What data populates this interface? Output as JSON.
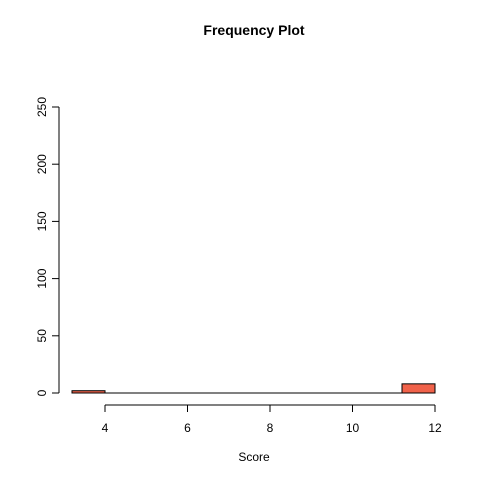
{
  "chart_data": {
    "type": "bar",
    "title": "Frequency Plot",
    "xlabel": "Score",
    "ylabel": "",
    "bins": [
      {
        "x0": 3.2,
        "x1": 4.0,
        "value": 2
      },
      {
        "x0": 11.2,
        "x1": 12.0,
        "value": 8
      }
    ],
    "baseline": {
      "x0": 3.2,
      "x1": 12.0
    },
    "xlim": [
      3.2,
      12.0
    ],
    "ylim": [
      0,
      250
    ],
    "xticks": [
      4,
      6,
      8,
      10,
      12
    ],
    "yticks": [
      0,
      50,
      100,
      150,
      200,
      250
    ],
    "grid": false,
    "colors": {
      "bar_fill": "#F0624A",
      "bar_stroke": "#000000"
    }
  }
}
